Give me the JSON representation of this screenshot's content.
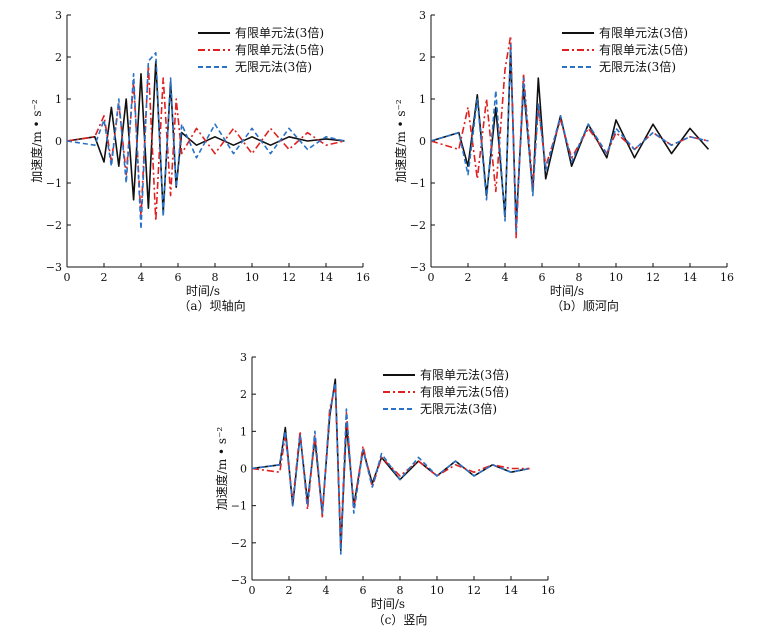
{
  "figure": {
    "legend": [
      "有限单元法(3倍)",
      "有限单元法(5倍)",
      "无限元法(3倍)"
    ],
    "series_colors": [
      "#111111",
      "#e02020",
      "#2a72c8"
    ]
  },
  "chart_data": [
    {
      "type": "line",
      "caption": "（a）坝轴向",
      "xlabel": "时间/s",
      "ylabel": "加速度/m • s⁻²",
      "xlim": [
        0,
        16
      ],
      "ylim": [
        -3,
        3
      ],
      "xticks": [
        0,
        2,
        4,
        6,
        8,
        10,
        12,
        14,
        16
      ],
      "yticks": [
        -3,
        -2,
        -1,
        0,
        1,
        2,
        3
      ],
      "legend_position": "top-right",
      "series": [
        {
          "name": "有限单元法(3倍)",
          "color": "#111111",
          "dash": "solid",
          "x": [
            0,
            1.5,
            2.0,
            2.4,
            2.8,
            3.2,
            3.6,
            4.0,
            4.4,
            4.8,
            5.2,
            5.6,
            5.9,
            6.2,
            7,
            8,
            9,
            10,
            11,
            12,
            13,
            14,
            15
          ],
          "y": [
            0,
            0.1,
            -0.5,
            0.8,
            -0.6,
            1.0,
            -1.4,
            1.6,
            -1.6,
            1.9,
            -1.7,
            1.4,
            -1.1,
            0.2,
            -0.1,
            0.1,
            -0.1,
            0.1,
            -0.1,
            0.1,
            0,
            0.05,
            0
          ]
        },
        {
          "name": "有限单元法(5倍)",
          "color": "#e02020",
          "dash": "dashdot",
          "x": [
            0,
            1.5,
            2.0,
            2.4,
            2.8,
            3.2,
            3.6,
            4.0,
            4.4,
            4.8,
            5.2,
            5.6,
            5.9,
            6.2,
            7,
            8,
            9,
            10,
            11,
            12,
            13,
            14,
            15
          ],
          "y": [
            0,
            0.1,
            0.6,
            -0.5,
            0.9,
            -0.8,
            1.4,
            -1.8,
            1.8,
            -1.9,
            1.5,
            -1.3,
            1.0,
            -0.3,
            0.3,
            -0.3,
            0.3,
            -0.3,
            0.3,
            -0.2,
            0.2,
            -0.1,
            0
          ]
        },
        {
          "name": "无限元法(3倍)",
          "color": "#2a72c8",
          "dash": "dashed",
          "x": [
            0,
            1.5,
            2.0,
            2.4,
            2.8,
            3.2,
            3.6,
            4.0,
            4.4,
            4.8,
            5.2,
            5.6,
            5.9,
            6.2,
            7,
            8,
            9,
            10,
            11,
            12,
            13,
            14,
            15
          ],
          "y": [
            0,
            -0.1,
            0.5,
            -0.6,
            1.0,
            -1.0,
            1.6,
            -2.1,
            1.9,
            2.1,
            -1.8,
            1.5,
            -1.1,
            0.4,
            -0.4,
            0.4,
            -0.3,
            0.3,
            -0.3,
            0.3,
            -0.2,
            0.1,
            0
          ]
        }
      ]
    },
    {
      "type": "line",
      "caption": "（b）顺河向",
      "xlabel": "时间/s",
      "ylabel": "加速度/m • s⁻²",
      "xlim": [
        0,
        16
      ],
      "ylim": [
        -3,
        3
      ],
      "xticks": [
        0,
        2,
        4,
        6,
        8,
        10,
        12,
        14,
        16
      ],
      "yticks": [
        -3,
        -2,
        -1,
        0,
        1,
        2,
        3
      ],
      "legend_position": "top-right",
      "series": [
        {
          "name": "有限单元法(3倍)",
          "color": "#111111",
          "dash": "solid",
          "x": [
            0,
            1.5,
            2.0,
            2.5,
            3.0,
            3.5,
            4.0,
            4.3,
            4.6,
            5.0,
            5.5,
            5.8,
            6.2,
            7.0,
            7.6,
            8.5,
            9.5,
            10,
            11,
            12,
            13,
            14,
            15
          ],
          "y": [
            0,
            0.2,
            -0.6,
            1.1,
            -1.3,
            0.8,
            -1.8,
            2.2,
            -2.0,
            1.3,
            -1.2,
            1.5,
            -0.9,
            0.6,
            -0.6,
            0.4,
            -0.4,
            0.5,
            -0.4,
            0.4,
            -0.3,
            0.3,
            -0.2
          ]
        },
        {
          "name": "有限单元法(5倍)",
          "color": "#e02020",
          "dash": "dashdot",
          "x": [
            0,
            1.5,
            2.0,
            2.5,
            3.0,
            3.5,
            4.0,
            4.3,
            4.6,
            5.0,
            5.5,
            5.8,
            6.2,
            7.0,
            7.6,
            8.5,
            9.5,
            10,
            11,
            12,
            13,
            14,
            15
          ],
          "y": [
            0,
            -0.2,
            0.8,
            -0.9,
            1.0,
            -1.2,
            1.7,
            2.5,
            -2.3,
            1.6,
            -1.1,
            0.8,
            -0.6,
            0.5,
            -0.4,
            0.3,
            -0.3,
            0.2,
            -0.2,
            0.2,
            -0.1,
            0.1,
            0
          ]
        },
        {
          "name": "无限元法(3倍)",
          "color": "#2a72c8",
          "dash": "dashed",
          "x": [
            0,
            1.5,
            2.0,
            2.5,
            3.0,
            3.5,
            4.0,
            4.3,
            4.6,
            5.0,
            5.5,
            5.8,
            6.2,
            7.0,
            7.6,
            8.5,
            9.5,
            10,
            11,
            12,
            13,
            14,
            15
          ],
          "y": [
            0,
            0.2,
            -0.8,
            1.0,
            -1.4,
            1.2,
            -1.9,
            2.3,
            -2.2,
            1.5,
            -1.3,
            0.9,
            -0.7,
            0.6,
            -0.5,
            0.4,
            -0.3,
            0.3,
            -0.2,
            0.2,
            -0.1,
            0.1,
            0
          ]
        }
      ]
    },
    {
      "type": "line",
      "caption": "（c）竖向",
      "xlabel": "时间/s",
      "ylabel": "加速度/m • s⁻²",
      "xlim": [
        0,
        16
      ],
      "ylim": [
        -3,
        3
      ],
      "xticks": [
        0,
        2,
        4,
        6,
        8,
        10,
        12,
        14,
        16
      ],
      "yticks": [
        -3,
        -2,
        -1,
        0,
        1,
        2,
        3
      ],
      "legend_position": "top-right",
      "series": [
        {
          "name": "有限单元法(3倍)",
          "color": "#111111",
          "dash": "solid",
          "x": [
            0,
            1.5,
            1.8,
            2.2,
            2.6,
            3.0,
            3.4,
            3.8,
            4.2,
            4.5,
            4.8,
            5.1,
            5.5,
            6.0,
            6.5,
            7,
            8,
            9,
            10,
            11,
            12,
            13,
            14,
            15
          ],
          "y": [
            0,
            0.1,
            1.1,
            -1.0,
            0.9,
            -0.9,
            0.8,
            -1.2,
            1.4,
            2.4,
            -2.2,
            1.2,
            -1.0,
            0.5,
            -0.4,
            0.3,
            -0.3,
            0.2,
            -0.2,
            0.2,
            -0.2,
            0.1,
            -0.1,
            0
          ]
        },
        {
          "name": "有限单元法(5倍)",
          "color": "#e02020",
          "dash": "dashdot",
          "x": [
            0,
            1.5,
            1.8,
            2.2,
            2.6,
            3.0,
            3.4,
            3.8,
            4.2,
            4.5,
            4.8,
            5.1,
            5.5,
            6.0,
            6.5,
            7,
            8,
            9,
            10,
            11,
            12,
            13,
            14,
            15
          ],
          "y": [
            0,
            -0.1,
            0.9,
            -0.9,
            1.0,
            -1.1,
            0.9,
            -1.3,
            1.6,
            2.2,
            -2.0,
            1.5,
            -1.1,
            0.6,
            -0.5,
            0.3,
            -0.2,
            0.2,
            -0.2,
            0.1,
            -0.1,
            0.1,
            0,
            0
          ]
        },
        {
          "name": "无限元法(3倍)",
          "color": "#2a72c8",
          "dash": "dashed",
          "x": [
            0,
            1.5,
            1.8,
            2.2,
            2.6,
            3.0,
            3.4,
            3.8,
            4.2,
            4.5,
            4.8,
            5.1,
            5.5,
            6.0,
            6.5,
            7,
            8,
            9,
            10,
            11,
            12,
            13,
            14,
            15
          ],
          "y": [
            0,
            0.1,
            1.0,
            -1.0,
            0.9,
            -1.0,
            1.0,
            -1.2,
            1.5,
            2.3,
            -2.3,
            1.6,
            -1.2,
            0.5,
            -0.5,
            0.4,
            -0.3,
            0.3,
            -0.2,
            0.2,
            -0.2,
            0.1,
            -0.1,
            0
          ]
        }
      ]
    }
  ]
}
